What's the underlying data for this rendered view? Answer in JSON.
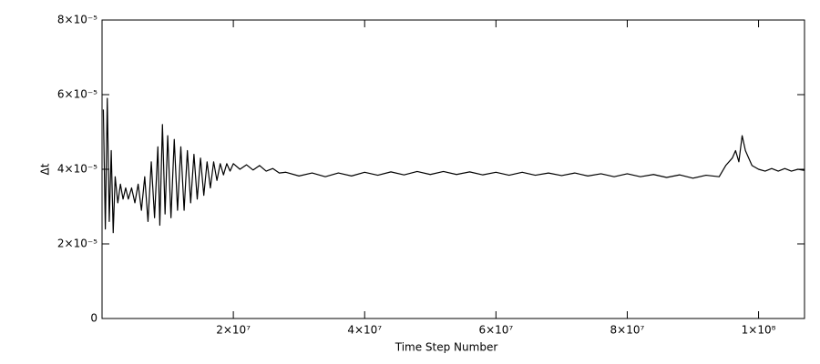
{
  "chart_data": {
    "type": "line",
    "xlabel": "Time Step Number",
    "ylabel": "Δt",
    "color": "#000000",
    "xlim": [
      0,
      107000000
    ],
    "ylim": [
      0,
      8e-05
    ],
    "xticks": [
      {
        "value": 20000000,
        "label": "2×10⁷"
      },
      {
        "value": 40000000,
        "label": "4×10⁷"
      },
      {
        "value": 60000000,
        "label": "6×10⁷"
      },
      {
        "value": 80000000,
        "label": "8×10⁷"
      },
      {
        "value": 100000000,
        "label": "1×10⁸"
      }
    ],
    "yticks": [
      0,
      {
        "value": 2e-05,
        "label": "2×10⁻⁵"
      },
      {
        "value": 4e-05,
        "label": "4×10⁻⁵"
      },
      {
        "value": 6e-05,
        "label": "6×10⁻⁵"
      },
      {
        "value": 8e-05,
        "label": "8×10⁻⁵"
      }
    ],
    "x": [
      200000,
      500000,
      800000,
      1100000,
      1400000,
      1700000,
      2000000,
      2400000,
      2800000,
      3200000,
      3600000,
      4000000,
      4500000,
      5000000,
      5500000,
      6000000,
      6500000,
      7000000,
      7500000,
      8000000,
      8500000,
      8800000,
      9200000,
      9600000,
      10000000,
      10500000,
      11000000,
      11500000,
      12000000,
      12500000,
      13000000,
      13500000,
      14000000,
      14500000,
      15000000,
      15500000,
      16000000,
      16500000,
      17000000,
      17500000,
      18000000,
      18500000,
      19000000,
      19500000,
      20000000,
      21000000,
      22000000,
      23000000,
      24000000,
      25000000,
      26000000,
      27000000,
      28000000,
      30000000,
      32000000,
      34000000,
      36000000,
      38000000,
      40000000,
      42000000,
      44000000,
      46000000,
      48000000,
      50000000,
      52000000,
      54000000,
      56000000,
      58000000,
      60000000,
      62000000,
      64000000,
      66000000,
      68000000,
      70000000,
      72000000,
      74000000,
      76000000,
      78000000,
      80000000,
      82000000,
      84000000,
      86000000,
      88000000,
      90000000,
      92000000,
      94000000,
      95000000,
      96000000,
      96500000,
      97000000,
      97500000,
      98000000,
      98500000,
      99000000,
      100000000,
      101000000,
      102000000,
      103000000,
      104000000,
      105000000,
      106000000,
      107000000
    ],
    "values": [
      5.6e-05,
      2.4e-05,
      5.9e-05,
      2.6e-05,
      4.5e-05,
      2.3e-05,
      3.8e-05,
      3.1e-05,
      3.6e-05,
      3.2e-05,
      3.5e-05,
      3.2e-05,
      3.5e-05,
      3.1e-05,
      3.6e-05,
      2.9e-05,
      3.8e-05,
      2.6e-05,
      4.2e-05,
      2.7e-05,
      4.6e-05,
      2.5e-05,
      5.2e-05,
      2.8e-05,
      4.9e-05,
      2.7e-05,
      4.8e-05,
      2.9e-05,
      4.6e-05,
      2.9e-05,
      4.5e-05,
      3.1e-05,
      4.4e-05,
      3.2e-05,
      4.3e-05,
      3.3e-05,
      4.2e-05,
      3.5e-05,
      4.2e-05,
      3.7e-05,
      4.15e-05,
      3.85e-05,
      4.15e-05,
      3.95e-05,
      4.15e-05,
      4e-05,
      4.12e-05,
      3.98e-05,
      4.1e-05,
      3.95e-05,
      4.02e-05,
      3.9e-05,
      3.92e-05,
      3.82e-05,
      3.9e-05,
      3.8e-05,
      3.9e-05,
      3.82e-05,
      3.92e-05,
      3.84e-05,
      3.93e-05,
      3.85e-05,
      3.94e-05,
      3.86e-05,
      3.94e-05,
      3.86e-05,
      3.93e-05,
      3.85e-05,
      3.92e-05,
      3.84e-05,
      3.92e-05,
      3.84e-05,
      3.9e-05,
      3.83e-05,
      3.9e-05,
      3.82e-05,
      3.88e-05,
      3.8e-05,
      3.88e-05,
      3.8e-05,
      3.86e-05,
      3.78e-05,
      3.85e-05,
      3.76e-05,
      3.84e-05,
      3.8e-05,
      4.1e-05,
      4.3e-05,
      4.5e-05,
      4.2e-05,
      4.9e-05,
      4.5e-05,
      4.3e-05,
      4.1e-05,
      4e-05,
      3.95e-05,
      4.02e-05,
      3.95e-05,
      4.02e-05,
      3.95e-05,
      4e-05,
      3.97e-05
    ]
  }
}
